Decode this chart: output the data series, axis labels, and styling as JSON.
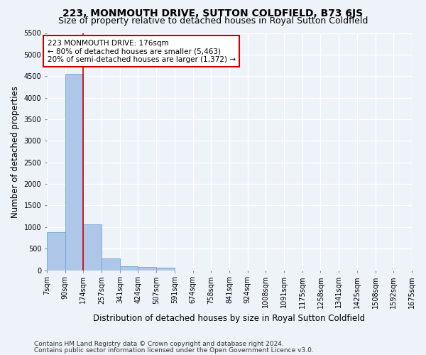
{
  "title": "223, MONMOUTH DRIVE, SUTTON COLDFIELD, B73 6JS",
  "subtitle": "Size of property relative to detached houses in Royal Sutton Coldfield",
  "xlabel": "Distribution of detached houses by size in Royal Sutton Coldfield",
  "ylabel": "Number of detached properties",
  "footnote1": "Contains HM Land Registry data © Crown copyright and database right 2024.",
  "footnote2": "Contains public sector information licensed under the Open Government Licence v3.0.",
  "bin_edges": [
    7,
    90,
    174,
    257,
    341,
    424,
    507,
    591,
    674,
    758,
    841,
    924,
    1008,
    1091,
    1175,
    1258,
    1341,
    1425,
    1508,
    1592,
    1675
  ],
  "bin_labels": [
    "7sqm",
    "90sqm",
    "174sqm",
    "257sqm",
    "341sqm",
    "424sqm",
    "507sqm",
    "591sqm",
    "674sqm",
    "758sqm",
    "841sqm",
    "924sqm",
    "1008sqm",
    "1091sqm",
    "1175sqm",
    "1258sqm",
    "1341sqm",
    "1425sqm",
    "1508sqm",
    "1592sqm",
    "1675sqm"
  ],
  "bar_heights": [
    880,
    4550,
    1060,
    280,
    90,
    80,
    50,
    0,
    0,
    0,
    0,
    0,
    0,
    0,
    0,
    0,
    0,
    0,
    0,
    0
  ],
  "bar_color": "#aec6e8",
  "bar_edge_color": "#6aaad4",
  "property_line_x": 174,
  "property_line_color": "#cc0000",
  "annotation_text": "223 MONMOUTH DRIVE: 176sqm\n← 80% of detached houses are smaller (5,463)\n20% of semi-detached houses are larger (1,372) →",
  "annotation_box_color": "#ffffff",
  "annotation_box_edge_color": "#cc0000",
  "ylim": [
    0,
    5500
  ],
  "yticks": [
    0,
    500,
    1000,
    1500,
    2000,
    2500,
    3000,
    3500,
    4000,
    4500,
    5000,
    5500
  ],
  "background_color": "#eef2f9",
  "grid_color": "#ffffff",
  "title_fontsize": 10,
  "subtitle_fontsize": 9,
  "axis_label_fontsize": 8.5,
  "tick_fontsize": 7,
  "footnote_fontsize": 6.5
}
